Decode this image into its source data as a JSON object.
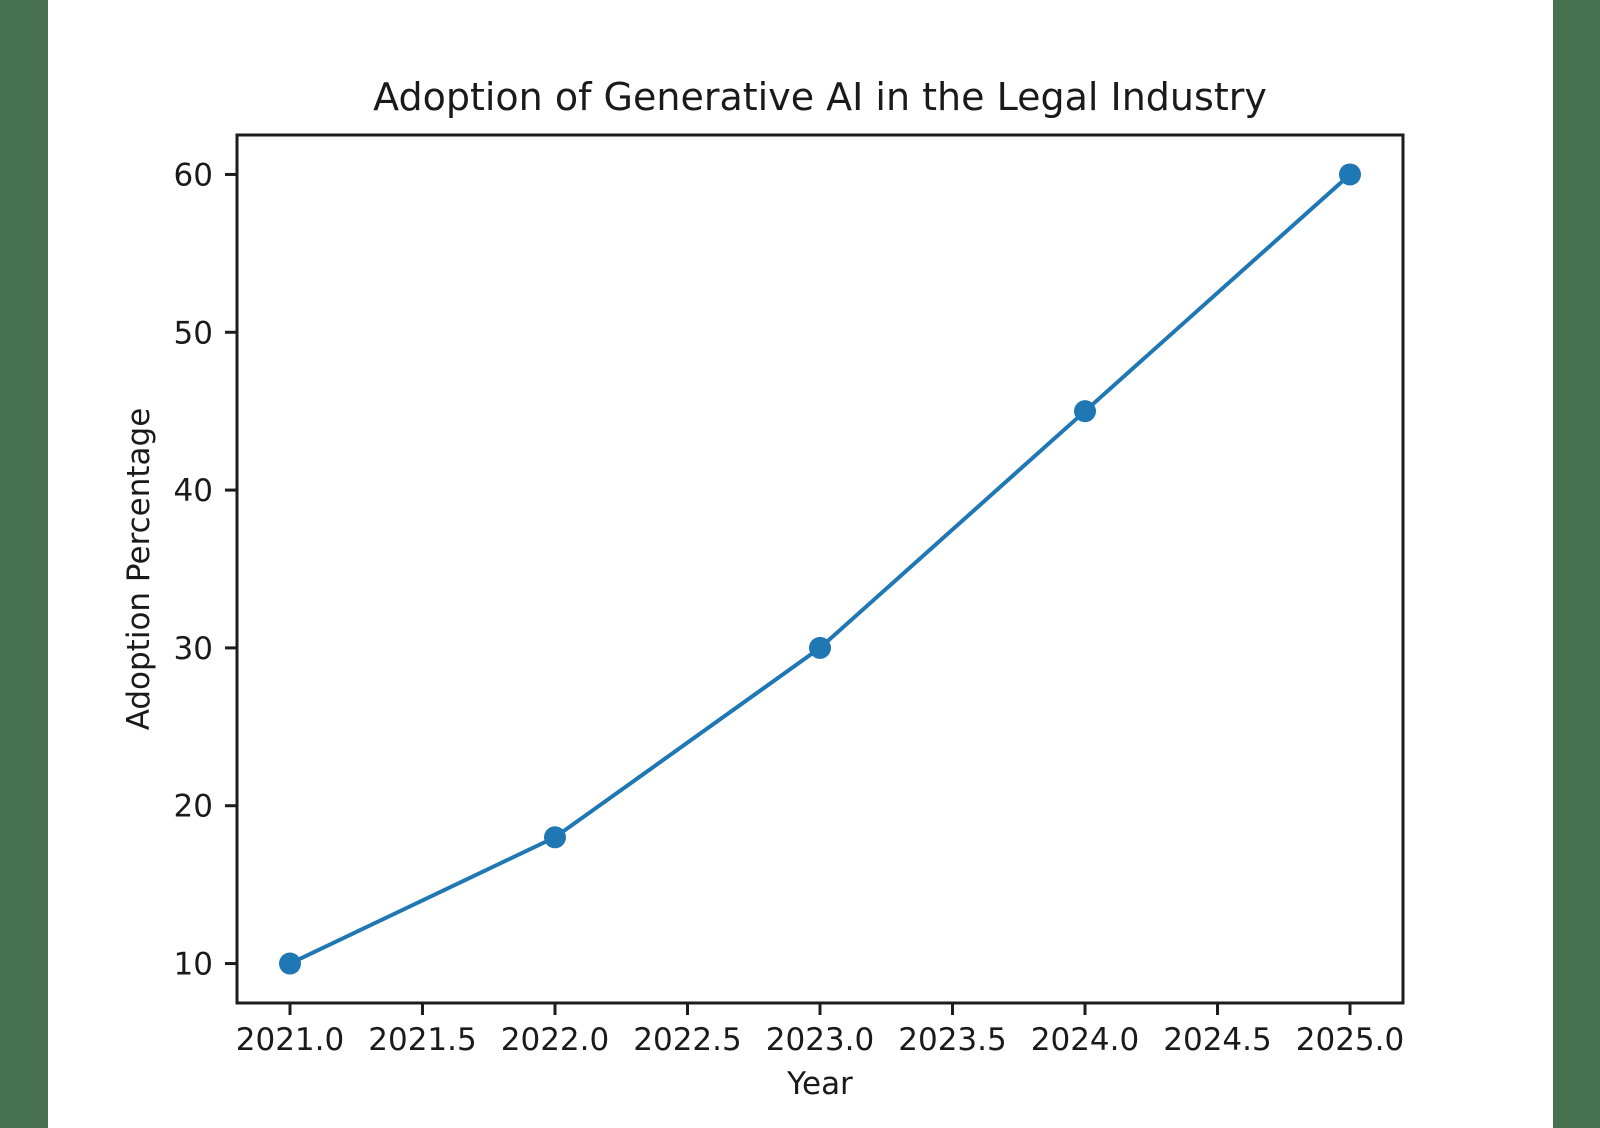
{
  "frame": {
    "background_color": "#ffffff",
    "side_strip_color": "#48714f"
  },
  "chart_data": {
    "type": "line",
    "title": "Adoption of Generative AI in the Legal Industry",
    "xlabel": "Year",
    "ylabel": "Adoption Percentage",
    "x": [
      2021,
      2022,
      2023,
      2024,
      2025
    ],
    "y": [
      10,
      18,
      30,
      45,
      60
    ],
    "xlim": [
      2020.8,
      2025.2
    ],
    "ylim": [
      7.5,
      62.5
    ],
    "xticks": [
      2021.0,
      2021.5,
      2022.0,
      2022.5,
      2023.0,
      2023.5,
      2024.0,
      2024.5,
      2025.0
    ],
    "xtick_labels": [
      "2021.0",
      "2021.5",
      "2022.0",
      "2022.5",
      "2023.0",
      "2023.5",
      "2024.0",
      "2024.5",
      "2025.0"
    ],
    "yticks": [
      10,
      20,
      30,
      40,
      50,
      60
    ],
    "ytick_labels": [
      "10",
      "20",
      "30",
      "40",
      "50",
      "60"
    ],
    "line_color": "#1f77b4",
    "marker": "filled-circle",
    "marker_color": "#1f77b4",
    "axis_color": "#1c1c1c",
    "text_color": "#1a1a1a",
    "grid": false,
    "legend": null
  }
}
